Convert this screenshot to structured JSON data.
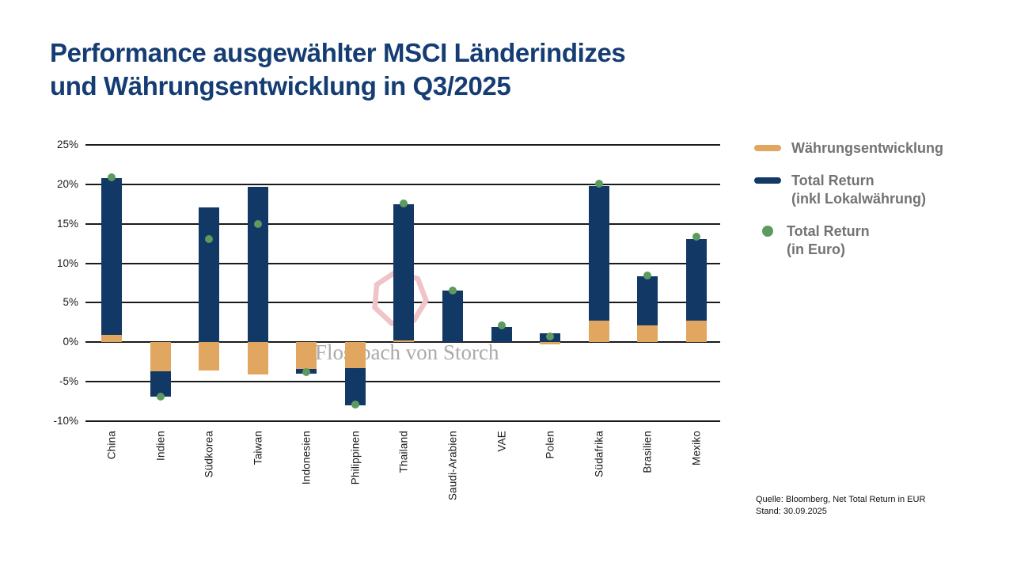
{
  "title": {
    "line1": "Performance ausgewählter MSCI Länderindizes",
    "line2": "und Währungsentwicklung in Q3/2025"
  },
  "watermark": {
    "text": "Flossbach von Storch",
    "shape_color": "#efc3c7"
  },
  "legend": {
    "items": [
      {
        "label": "Währungsentwicklung",
        "sublabel": "",
        "marker": "bar",
        "color": "#e1a65f"
      },
      {
        "label": "Total Return",
        "sublabel": "(inkl Lokalwährung)",
        "marker": "bar",
        "color": "#123865"
      },
      {
        "label": "Total Return",
        "sublabel": "(in Euro)",
        "marker": "dot",
        "color": "#5c9a60"
      }
    ]
  },
  "source": {
    "line1": "Quelle: Bloomberg, Net Total Return in EUR",
    "line2": "Stand: 30.09.2025"
  },
  "chart_data": {
    "type": "bar",
    "title": "Performance ausgewählter MSCI Länderindizes und Währungsentwicklung in Q3/2025",
    "categories": [
      "China",
      "Indien",
      "Südkorea",
      "Taiwan",
      "Indonesien",
      "Philippinen",
      "Thailand",
      "Saudi-Arabien",
      "VAE",
      "Polen",
      "Südafrika",
      "Brasilien",
      "Mexiko"
    ],
    "series": [
      {
        "name": "Währungsentwicklung",
        "type": "bar-stacked",
        "color": "#e1a65f",
        "values": [
          0.9,
          -3.7,
          -3.6,
          -4.1,
          -3.4,
          -3.3,
          0.2,
          0.0,
          0.0,
          -0.3,
          2.7,
          2.1,
          2.7
        ]
      },
      {
        "name": "Total Return (inkl Lokalwährung)",
        "type": "bar-stacked",
        "color": "#123865",
        "values": [
          19.9,
          -3.2,
          17.1,
          19.7,
          -0.6,
          -4.7,
          17.3,
          6.5,
          1.9,
          1.1,
          17.1,
          6.3,
          10.4
        ]
      },
      {
        "name": "Total Return (in Euro)",
        "type": "scatter",
        "color": "#5c9a60",
        "values": [
          20.9,
          -6.9,
          13.1,
          15.0,
          -3.8,
          -7.9,
          17.6,
          6.5,
          2.1,
          0.7,
          20.1,
          8.5,
          13.4
        ]
      }
    ],
    "xlabel": "",
    "ylabel": "",
    "ylim": [
      -10,
      25
    ],
    "ytick_values": [
      25,
      20,
      15,
      10,
      5,
      0,
      -5,
      -10
    ],
    "ytick_labels": [
      "25%",
      "20%",
      "15%",
      "10%",
      "5%",
      "0%",
      "-5%",
      "-10%"
    ],
    "grid": true,
    "legend_position": "right"
  }
}
